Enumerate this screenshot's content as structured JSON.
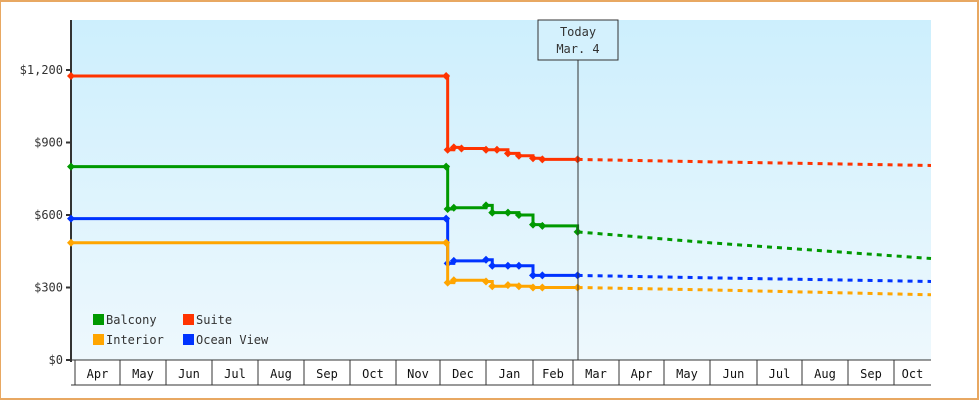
{
  "chart_data": {
    "type": "line",
    "title": "",
    "xlabel": "",
    "ylabel": "",
    "ylim": [
      0,
      1400
    ],
    "yticks": [
      "$0",
      "$300",
      "$600",
      "$900",
      "$1,200"
    ],
    "ytick_values": [
      0,
      300,
      600,
      900,
      1200
    ],
    "months": [
      "Apr",
      "May",
      "Jun",
      "Jul",
      "Aug",
      "Sep",
      "Oct",
      "Nov",
      "Dec",
      "Jan",
      "Feb",
      "Mar",
      "Apr",
      "May",
      "Jun",
      "Jul",
      "Aug",
      "Sep",
      "Oct"
    ],
    "today_marker": {
      "line1": "Today",
      "line2": "Mar. 4"
    },
    "legend": [
      {
        "name": "Balcony",
        "color": "#009900"
      },
      {
        "name": "Suite",
        "color": "#ff3300"
      },
      {
        "name": "Interior",
        "color": "#ffa500"
      },
      {
        "name": "Ocean View",
        "color": "#0033ff"
      }
    ],
    "series": [
      {
        "name": "Suite",
        "color": "#ff3300",
        "history": [
          [
            "Apr 1",
            1175
          ],
          [
            "Dec 5",
            1175
          ],
          [
            "Dec 6",
            870
          ],
          [
            "Dec 10",
            880
          ],
          [
            "Dec 15",
            875
          ],
          [
            "Jan 1",
            870
          ],
          [
            "Jan 8",
            870
          ],
          [
            "Jan 15",
            855
          ],
          [
            "Jan 22",
            845
          ],
          [
            "Feb 1",
            835
          ],
          [
            "Feb 8",
            830
          ],
          [
            "Mar 4",
            830
          ]
        ],
        "forecast": [
          [
            "Mar 4",
            830
          ],
          [
            "Jun 1",
            820
          ],
          [
            "Oct 31",
            805
          ]
        ]
      },
      {
        "name": "Balcony",
        "color": "#009900",
        "history": [
          [
            "Apr 1",
            800
          ],
          [
            "Dec 5",
            800
          ],
          [
            "Dec 6",
            625
          ],
          [
            "Dec 10",
            630
          ],
          [
            "Jan 1",
            640
          ],
          [
            "Jan 5",
            610
          ],
          [
            "Jan 15",
            610
          ],
          [
            "Jan 22",
            600
          ],
          [
            "Feb 1",
            560
          ],
          [
            "Feb 8",
            555
          ],
          [
            "Mar 4",
            530
          ]
        ],
        "forecast": [
          [
            "Mar 4",
            530
          ],
          [
            "Jun 1",
            485
          ],
          [
            "Oct 31",
            420
          ]
        ]
      },
      {
        "name": "Ocean View",
        "color": "#0033ff",
        "history": [
          [
            "Apr 1",
            585
          ],
          [
            "Dec 5",
            585
          ],
          [
            "Dec 6",
            400
          ],
          [
            "Dec 10",
            410
          ],
          [
            "Jan 1",
            415
          ],
          [
            "Jan 5",
            390
          ],
          [
            "Jan 15",
            390
          ],
          [
            "Jan 22",
            390
          ],
          [
            "Feb 1",
            350
          ],
          [
            "Feb 8",
            350
          ],
          [
            "Mar 4",
            350
          ]
        ],
        "forecast": [
          [
            "Mar 4",
            350
          ],
          [
            "Jun 1",
            340
          ],
          [
            "Oct 31",
            325
          ]
        ]
      },
      {
        "name": "Interior",
        "color": "#ffa500",
        "history": [
          [
            "Apr 1",
            485
          ],
          [
            "Dec 5",
            485
          ],
          [
            "Dec 6",
            320
          ],
          [
            "Dec 10",
            330
          ],
          [
            "Jan 1",
            325
          ],
          [
            "Jan 5",
            305
          ],
          [
            "Jan 15",
            310
          ],
          [
            "Jan 22",
            305
          ],
          [
            "Feb 1",
            300
          ],
          [
            "Feb 8",
            300
          ],
          [
            "Mar 4",
            300
          ]
        ],
        "forecast": [
          [
            "Mar 4",
            300
          ],
          [
            "Jun 1",
            290
          ],
          [
            "Oct 31",
            270
          ]
        ]
      }
    ],
    "grid": false,
    "legend_position": "lower-left"
  }
}
